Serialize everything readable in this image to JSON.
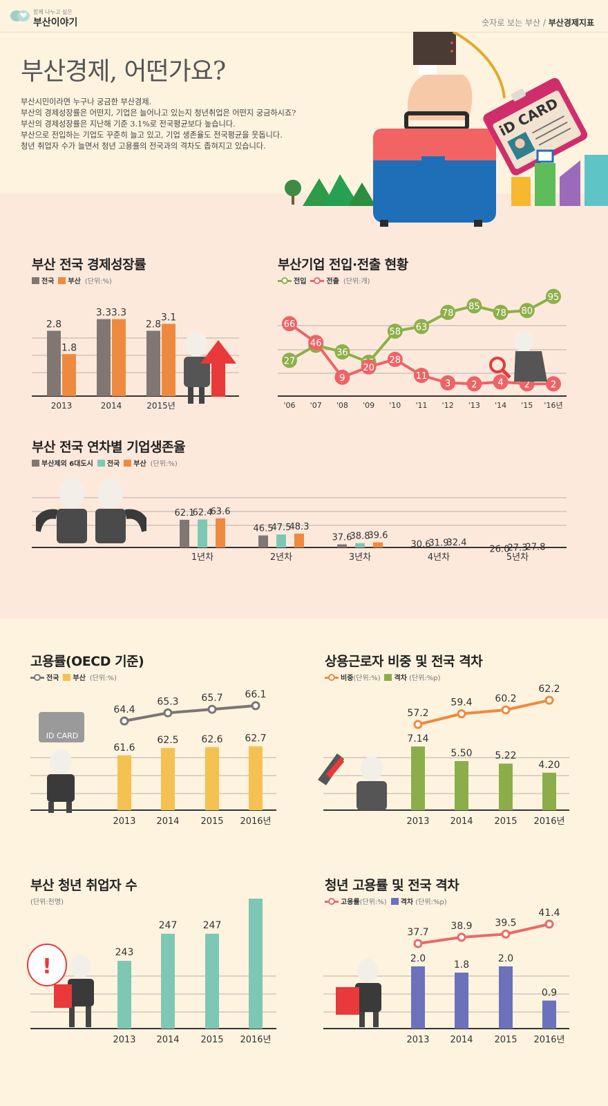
{
  "header": {
    "logo_small": "함께 나누고 싶은",
    "logo_main": "부산이야기",
    "breadcrumb_parent": "숫자로 보는 부산",
    "breadcrumb_sep": "/",
    "breadcrumb_current": "부산경제지표"
  },
  "hero": {
    "title": "부산경제, 어떤가요?",
    "intro": [
      "부산시민이라면 누구나 궁금한 부산경제.",
      "부산의 경제성장률은 어떤지, 기업은 늘어나고 있는지 청년취업은 어떤지 궁금하시죠?",
      "부산의 경제성장률은 지난해 기준 3.1%로 전국평균보다 높습니다.",
      "부산으로 전입하는 기업도 꾸준히 늘고 있고, 기업 생존율도 전국평균을 웃돕니다.",
      "청년 취업자 수가 늘면서 청년 고용률의 전국과의 격차도 좁혀지고 있습니다."
    ],
    "id_card_text": "iD CARD"
  },
  "colors": {
    "gray": "#807773",
    "orange": "#ee8a40",
    "green": "#8db04a",
    "red": "#ec6466",
    "teal": "#7dc8b4",
    "yellow": "#f4c152",
    "olive": "#8bae4b",
    "purple": "#6b71ba",
    "line_gray": "#7d7572",
    "line_orange": "#ee8a3c",
    "line_red": "#ec6869"
  },
  "charts": {
    "growth": {
      "title": "부산 전국 경제성장률",
      "legend": [
        "전국",
        "부산"
      ],
      "unit": "(단위:%)"
    },
    "firms": {
      "title": "부산기업 전입·전출 현황",
      "legend": [
        "전입",
        "전출"
      ],
      "unit": "(단위:개)"
    },
    "survival": {
      "title": "부산 전국 연차별 기업생존율",
      "legend": [
        "부산제외 6대도시",
        "전국",
        "부산"
      ],
      "unit": "(단위:%)"
    },
    "employment": {
      "title": "고용률(OECD 기준)",
      "legend": [
        "전국",
        "부산"
      ],
      "unit": "(단위:%)",
      "id_card_text": "ID CARD"
    },
    "regular": {
      "title": "상용근로자 비중 및 전국 격차",
      "legend": [
        "비중",
        "격차"
      ],
      "unit1": "(단위:%)",
      "unit2": "(단위:%p)"
    },
    "youth_count": {
      "title": "부산 청년 취업자 수",
      "unit": "(단위:천명)"
    },
    "youth_rate": {
      "title": "청년 고용률 및 전국 격차",
      "legend": [
        "고용률",
        "격차"
      ],
      "unit1": "(단위:%)",
      "unit2": "(단위:%p)"
    }
  },
  "chart_data": [
    {
      "id": "growth",
      "type": "bar",
      "title": "부산 전국 경제성장률",
      "categories": [
        "2013",
        "2014",
        "2015년"
      ],
      "series": [
        {
          "name": "전국",
          "values": [
            2.8,
            3.3,
            2.8
          ]
        },
        {
          "name": "부산",
          "values": [
            1.8,
            3.3,
            3.1
          ]
        }
      ],
      "ylim": [
        0,
        4
      ],
      "grid": true
    },
    {
      "id": "firms",
      "type": "line",
      "title": "부산기업 전입·전출 현황",
      "categories": [
        "'06",
        "'07",
        "'08",
        "'09",
        "'10",
        "'11",
        "'12",
        "'13",
        "'14",
        "'15",
        "'16년"
      ],
      "series": [
        {
          "name": "전입",
          "values": [
            27,
            43,
            36,
            25,
            58,
            63,
            78,
            85,
            78,
            80,
            95
          ]
        },
        {
          "name": "전출",
          "values": [
            66,
            46,
            9,
            20,
            28,
            11,
            3,
            2,
            4,
            2,
            2
          ]
        }
      ],
      "grid": true
    },
    {
      "id": "survival",
      "type": "bar",
      "title": "부산 전국 연차별 기업생존율",
      "categories": [
        "1년차",
        "2년차",
        "3년차",
        "4년차",
        "5년차"
      ],
      "series": [
        {
          "name": "부산제외 6대도시",
          "values": [
            62.1,
            46.5,
            37.6,
            30.6,
            26.0
          ]
        },
        {
          "name": "전국",
          "values": [
            62.4,
            47.5,
            38.8,
            31.9,
            27.3
          ]
        },
        {
          "name": "부산",
          "values": [
            63.6,
            48.3,
            39.6,
            32.4,
            27.8
          ]
        }
      ],
      "value_labels": [
        [
          "62.1",
          "46.5",
          "37.6",
          "30.6",
          "26.0"
        ],
        [
          "62.4",
          "47.5",
          "38.8",
          "31.9",
          "27.3"
        ],
        [
          "63.6",
          "48.3",
          "39.6",
          "32.4",
          "27.8"
        ]
      ],
      "grid": true
    },
    {
      "id": "employment",
      "type": "bar+line",
      "title": "고용률(OECD 기준)",
      "categories": [
        "2013",
        "2014",
        "2015",
        "2016년"
      ],
      "series": [
        {
          "name": "전국",
          "type": "line",
          "values": [
            64.4,
            65.3,
            65.7,
            66.1
          ]
        },
        {
          "name": "부산",
          "type": "bar",
          "values": [
            61.6,
            62.5,
            62.6,
            62.7
          ]
        }
      ],
      "grid": true
    },
    {
      "id": "regular",
      "type": "bar+line",
      "title": "상용근로자 비중 및 전국 격차",
      "categories": [
        "2013",
        "2014",
        "2015",
        "2016년"
      ],
      "series": [
        {
          "name": "비중",
          "type": "line",
          "values": [
            57.2,
            59.4,
            60.2,
            62.2
          ]
        },
        {
          "name": "격차",
          "type": "bar",
          "values": [
            7.14,
            5.5,
            5.22,
            4.2
          ],
          "labels": [
            "7.14",
            "5.50",
            "5.22",
            "4.20"
          ]
        }
      ],
      "grid": true
    },
    {
      "id": "youth_count",
      "type": "bar",
      "title": "부산 청년 취업자 수",
      "categories": [
        "2013",
        "2014",
        "2015",
        "2016년"
      ],
      "values": [
        243,
        247,
        247,
        254
      ],
      "grid": true
    },
    {
      "id": "youth_rate",
      "type": "bar+line",
      "title": "청년 고용률 및 전국 격차",
      "categories": [
        "2013",
        "2014",
        "2015",
        "2016년"
      ],
      "series": [
        {
          "name": "고용률",
          "type": "line",
          "values": [
            37.7,
            38.9,
            39.5,
            41.4
          ]
        },
        {
          "name": "격차",
          "type": "bar",
          "values": [
            2.0,
            1.8,
            2.0,
            0.9
          ],
          "labels": [
            "2.0",
            "1.8",
            "2.0",
            "0.9"
          ]
        }
      ],
      "grid": true
    }
  ]
}
